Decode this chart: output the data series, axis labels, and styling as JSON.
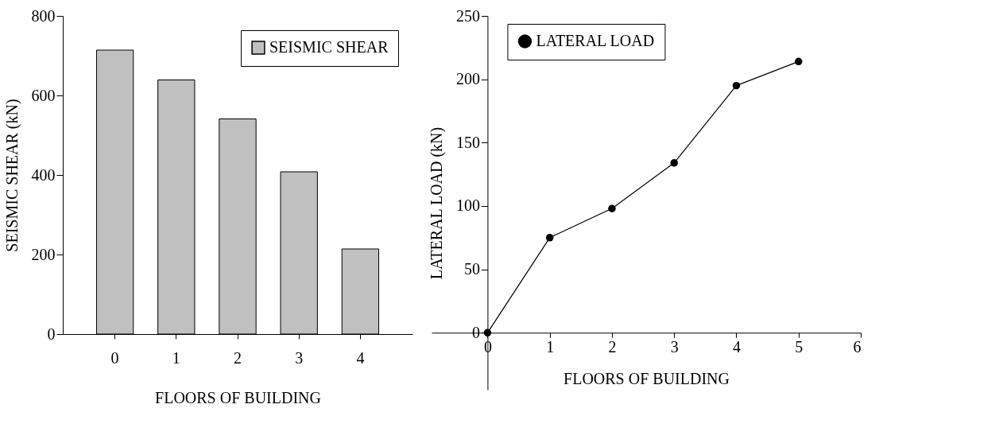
{
  "chart_data": [
    {
      "type": "bar",
      "categories": [
        "0",
        "1",
        "2",
        "3",
        "4"
      ],
      "series": [
        {
          "name": "SEISMIC SHEAR",
          "color": "#c0c0c0",
          "values": [
            714,
            639,
            541,
            408,
            214
          ]
        }
      ],
      "xlabel": "FLOORS OF BUILDING",
      "ylabel": "SEISMIC SHEAR (kN)",
      "ylim": [
        0,
        800
      ],
      "yticks": [
        0,
        200,
        400,
        600,
        800
      ],
      "grid": false,
      "legend": "top right"
    },
    {
      "type": "line",
      "x": [
        0,
        1,
        2,
        3,
        4,
        5
      ],
      "series": [
        {
          "name": "LATERAL LOAD",
          "color": "#000000",
          "values": [
            0,
            75,
            98,
            134,
            195,
            214
          ]
        }
      ],
      "xlabel": "FLOORS OF BUILDING",
      "ylabel": "LATERAL LOAD (kN)",
      "xlim": [
        -0.9,
        6
      ],
      "xticks": [
        0,
        1,
        2,
        3,
        4,
        5,
        6
      ],
      "ylim": [
        -45,
        250
      ],
      "yticks": [
        0,
        50,
        100,
        150,
        200,
        250
      ],
      "grid": false,
      "legend": "top left",
      "marker": "circle",
      "line_style": "solid"
    }
  ]
}
